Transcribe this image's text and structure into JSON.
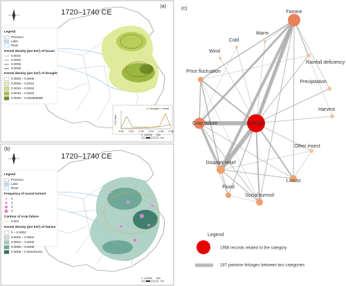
{
  "panel_a": {
    "label": "(a)",
    "title": "1720–1740 CE",
    "legend": {
      "title": "Legend",
      "items": [
        "Province",
        "Lake",
        "River"
      ],
      "locust_title": "Kernel density (per km²) of locust",
      "locust_levels": [
        "0.0002",
        "0.0004",
        "0.0006",
        "0.0008"
      ],
      "drought_title": "Kernel density (per km²) of drought",
      "drought_classes": [
        "0.0000 – 0.0005",
        "0.0005 – 0.0010",
        "0.0010 – 0.0015",
        "0.0015 – 0.0020",
        "0.0020 – 0.002668899"
      ]
    },
    "inset": {
      "y_label": "# of cities",
      "series": [
        "drought",
        "locust"
      ],
      "x_ticks": [
        "1720",
        "1724",
        "1728",
        "1732",
        "1736",
        "1740"
      ]
    },
    "scale": [
      "0",
      "125",
      "250",
      "500",
      "km"
    ]
  },
  "panel_b": {
    "label": "(b)",
    "title": "1720–1740 CE",
    "legend": {
      "title": "Legend",
      "items": [
        "Province",
        "Lake",
        "River"
      ],
      "turmoil_title": "Frequency of social turmoil",
      "turmoil_levels": [
        "1",
        "2",
        "3",
        "4"
      ],
      "crop_title": "Contour of crop failure",
      "crop_levels": [
        "0.001"
      ],
      "famine_title": "Kernel density (per km²) of famine",
      "famine_classes": [
        "0 – 0.0002",
        "0.0002 – 0.0004",
        "0.0004 – 0.0006",
        "0.0006 – 0.0008",
        "0.0008 – 0.001161151"
      ]
    },
    "scale": [
      "0",
      "125",
      "250",
      "500",
      "km"
    ]
  },
  "panel_c": {
    "label": "(c)",
    "nodes": [
      "Famine",
      "Warm",
      "Cold",
      "Wind",
      "Rainfall deficiency",
      "Price fluctuation",
      "Precipitation",
      "Crop failure",
      "Drought",
      "Harvest",
      "Disaster relief",
      "Other insect",
      "Flood",
      "Locust",
      "Social turmoil"
    ],
    "legend": {
      "title": "Legend",
      "node_text": "1958 records related to the category",
      "edge_text": "187 pairwise linkages between two categories"
    }
  }
}
